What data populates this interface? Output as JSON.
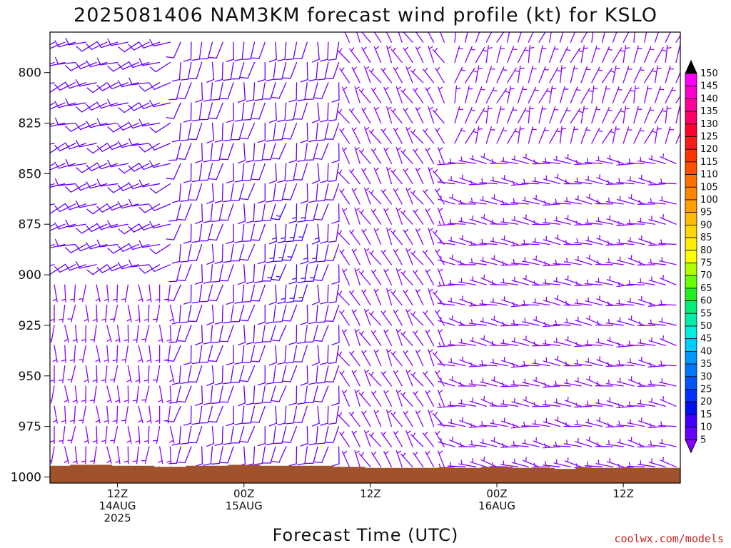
{
  "chart_data": {
    "type": "wind-barb-time-height",
    "title": "2025081406 NAM3KM forecast wind profile (kt) for KSLO",
    "xlabel": "Forecast Time (UTC)",
    "ylabel": "",
    "units": "kt",
    "y_ticks": [
      800,
      825,
      850,
      875,
      900,
      925,
      950,
      975,
      1000
    ],
    "ylim": [
      780,
      1003
    ],
    "y_direction": "inverted (pressure in hPa, increasing downward)",
    "x_ticks": [
      {
        "hour": 6,
        "lines": [
          "12Z",
          "14AUG",
          "2025"
        ]
      },
      {
        "hour": 18,
        "lines": [
          "00Z",
          "15AUG"
        ]
      },
      {
        "hour": 30,
        "lines": [
          "12Z"
        ]
      },
      {
        "hour": 42,
        "lines": [
          "00Z",
          "16AUG"
        ]
      },
      {
        "hour": 54,
        "lines": [
          "12Z"
        ]
      }
    ],
    "x_unit": "forecast hour from 2025-08-14 06Z",
    "xlim": [
      0,
      59
    ],
    "forecast_hours": [
      0,
      1,
      2,
      3,
      4,
      5,
      6,
      7,
      8,
      9,
      10,
      11,
      12,
      13,
      14,
      15,
      16,
      17,
      18,
      19,
      20,
      21,
      22,
      23,
      24,
      25,
      26,
      27,
      28,
      29,
      30,
      31,
      32,
      33,
      34,
      35,
      36,
      37,
      38,
      39,
      40,
      41,
      42,
      43,
      44,
      45,
      46,
      47,
      48,
      49,
      50,
      51,
      52,
      53,
      54,
      55,
      56,
      57,
      58,
      59
    ],
    "pressure_levels": [
      785,
      795,
      805,
      815,
      825,
      835,
      845,
      855,
      865,
      875,
      885,
      895,
      905,
      915,
      925,
      935,
      945,
      955,
      965,
      975,
      985,
      995
    ],
    "wind_regimes": [
      {
        "hours": [
          0,
          12
        ],
        "levels": "above 900 hPa",
        "direction_deg": 250,
        "speed_kt": 10
      },
      {
        "hours": [
          0,
          12
        ],
        "levels": "below 900 hPa",
        "direction_deg": 180,
        "speed_kt": 7
      },
      {
        "hours": [
          12,
          28
        ],
        "levels": "all",
        "direction_deg": 190,
        "speed_kt": 12,
        "peak_speed_kt": 18,
        "peak_near": {
          "hour": 23,
          "level": 885
        }
      },
      {
        "hours": [
          28,
          38
        ],
        "levels": "all",
        "direction_deg": 330,
        "speed_kt": 9
      },
      {
        "hours": [
          38,
          59
        ],
        "levels": "above 840 hPa",
        "direction_deg": 20,
        "speed_kt": 8
      },
      {
        "hours": [
          38,
          59
        ],
        "levels": "below 840 hPa",
        "direction_deg": 280,
        "speed_kt": 8
      }
    ],
    "surface_pressure_hpa": [
      998,
      998,
      997.5,
      997.5,
      997.5,
      997.5,
      998,
      998,
      998,
      998,
      998.5,
      998.5,
      998.5,
      998,
      998,
      998,
      998,
      997.5,
      997.5,
      997.5,
      998,
      998,
      998,
      998,
      998,
      998,
      998,
      998.5,
      998.5,
      998.5,
      999,
      999,
      999,
      999,
      999,
      999,
      999,
      999,
      999,
      999,
      999,
      998.5,
      998.5,
      998.5,
      999,
      999,
      999,
      999,
      999.5,
      999.5,
      999,
      999,
      999,
      999,
      999,
      999,
      999,
      999,
      999,
      999
    ]
  },
  "colorbar": {
    "labels": [
      "150",
      "145",
      "140",
      "135",
      "130",
      "125",
      "120",
      "115",
      "110",
      "105",
      "100",
      "95",
      "90",
      "85",
      "80",
      "75",
      "70",
      "65",
      "60",
      "55",
      "50",
      "45",
      "40",
      "35",
      "30",
      "25",
      "20",
      "15",
      "10",
      "5"
    ],
    "colors": [
      "#ff00ff",
      "#ff00cc",
      "#ff0099",
      "#ff0066",
      "#ff0033",
      "#ff1a1a",
      "#ff3300",
      "#ff5000",
      "#ff7000",
      "#ff8800",
      "#ffa000",
      "#ffbb00",
      "#ffd700",
      "#ffee00",
      "#ffff00",
      "#b0ff00",
      "#66ff00",
      "#22ee22",
      "#00ee77",
      "#00eeaa",
      "#00eedd",
      "#00ccff",
      "#0099ff",
      "#0077ff",
      "#0055ff",
      "#0033ff",
      "#0011ee",
      "#4400ff",
      "#6600ff",
      "#8800ff"
    ]
  },
  "colors": {
    "terrain": "#a0522d",
    "barb_low": "#8800ff",
    "barb_mid": "#6600ff",
    "barb_high": "#4400ff"
  },
  "credit": "coolwx.com/models"
}
